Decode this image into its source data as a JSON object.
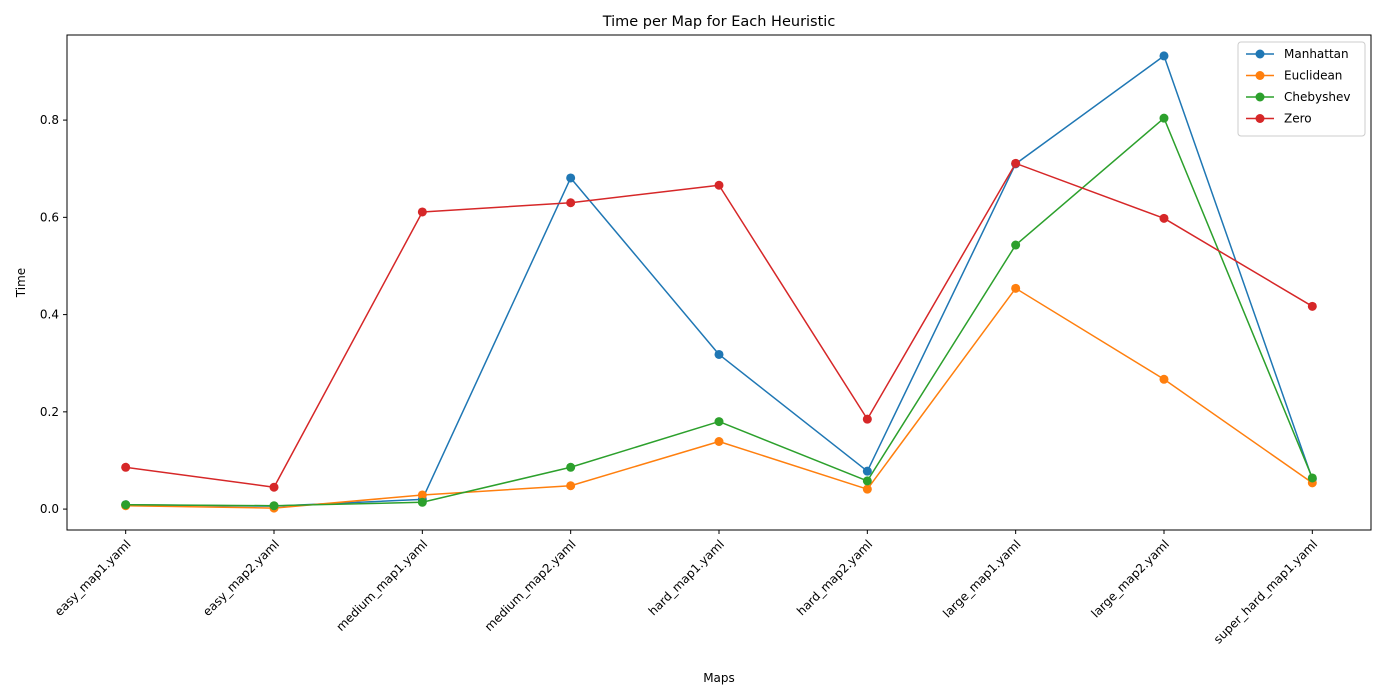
{
  "chart_data": {
    "type": "line",
    "title": "Time per Map for Each Heuristic",
    "xlabel": "Maps",
    "ylabel": "Time",
    "categories": [
      "easy_map1.yaml",
      "easy_map2.yaml",
      "medium_map1.yaml",
      "medium_map2.yaml",
      "hard_map1.yaml",
      "hard_map2.yaml",
      "large_map1.yaml",
      "large_map2.yaml",
      "super_hard_map1.yaml"
    ],
    "ylim": [
      -0.043,
      0.975
    ],
    "yticks": [
      0.0,
      0.2,
      0.4,
      0.6,
      0.8
    ],
    "ytick_labels": [
      "0.0",
      "0.2",
      "0.4",
      "0.6",
      "0.8"
    ],
    "grid": false,
    "legend_position": "top-right",
    "marker": "circle",
    "series": [
      {
        "name": "Manhattan",
        "color": "#1f77b4",
        "values": [
          0.009,
          0.006,
          0.02,
          0.681,
          0.318,
          0.078,
          0.71,
          0.932,
          0.062
        ]
      },
      {
        "name": "Euclidean",
        "color": "#ff7f0e",
        "values": [
          0.007,
          0.002,
          0.029,
          0.048,
          0.139,
          0.041,
          0.454,
          0.267,
          0.054
        ]
      },
      {
        "name": "Chebyshev",
        "color": "#2ca02c",
        "values": [
          0.009,
          0.007,
          0.014,
          0.086,
          0.18,
          0.058,
          0.543,
          0.804,
          0.064
        ]
      },
      {
        "name": "Zero",
        "color": "#d62728",
        "values": [
          0.086,
          0.045,
          0.611,
          0.63,
          0.666,
          0.185,
          0.711,
          0.598,
          0.417
        ]
      }
    ]
  }
}
